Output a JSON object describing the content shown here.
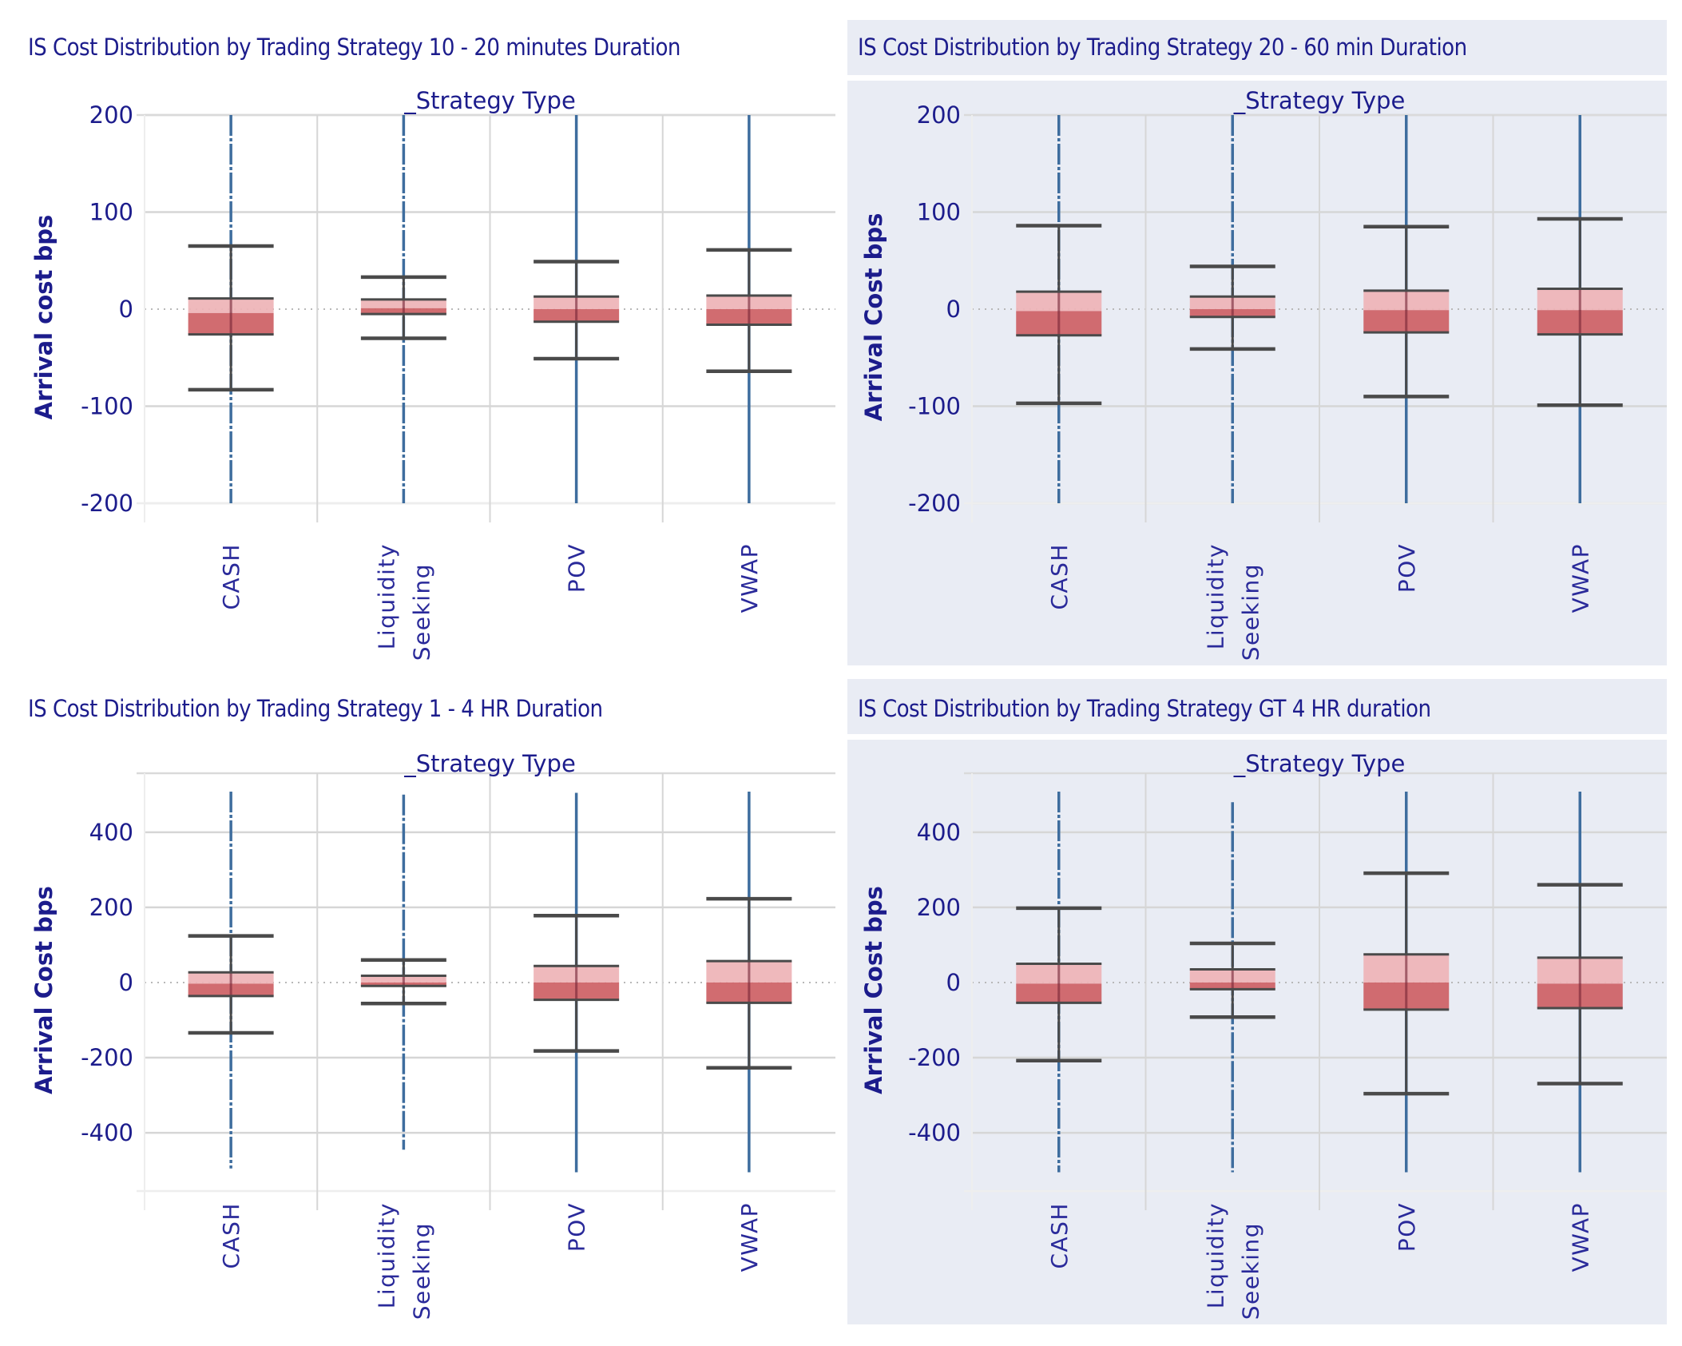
{
  "colors": {
    "text": "#1c1c8c",
    "panel_bg": "#e9ecf4",
    "grid": "#d6d6d6",
    "outlier_line": "#3e6d9e",
    "whisker": "#4a4a4a",
    "box_upper": "#eeb3b6",
    "box_lower": "#cf6468"
  },
  "chart_data": [
    {
      "type": "boxplot",
      "title": "IS Cost Distribution by Trading Strategy  10 - 20 minutes Duration",
      "xlabel": "_Strategy Type",
      "ylabel": "Arrival cost bps",
      "ylim": [
        -200,
        200
      ],
      "yticks": [
        200,
        100,
        0,
        -100,
        -200
      ],
      "grid": true,
      "categories": [
        "CASH",
        "Liquidity Seeking",
        "POV",
        "VWAP"
      ],
      "series": [
        {
          "name": "CASH",
          "whisker_low": -83,
          "q1": -26,
          "median": -4,
          "q3": 11,
          "whisker_high": 65,
          "outlier_range": [
            -200,
            200
          ]
        },
        {
          "name": "Liquidity Seeking",
          "whisker_low": -30,
          "q1": -5,
          "median": 1,
          "q3": 10,
          "whisker_high": 33,
          "outlier_range": [
            -200,
            200
          ]
        },
        {
          "name": "POV",
          "whisker_low": -51,
          "q1": -13,
          "median": 0,
          "q3": 13,
          "whisker_high": 49,
          "outlier_range": [
            -200,
            200
          ]
        },
        {
          "name": "VWAP",
          "whisker_low": -64,
          "q1": -16,
          "median": 0,
          "q3": 14,
          "whisker_high": 61,
          "outlier_range": [
            -200,
            200
          ]
        }
      ]
    },
    {
      "type": "boxplot",
      "title": "IS Cost Distribution by Trading Strategy  20 - 60 min Duration",
      "xlabel": "_Strategy Type",
      "ylabel": "Arrival Cost bps",
      "ylim": [
        -200,
        200
      ],
      "yticks": [
        200,
        100,
        0,
        -100,
        -200
      ],
      "grid": true,
      "categories": [
        "CASH",
        "Liquidity Seeking",
        "POV",
        "VWAP"
      ],
      "series": [
        {
          "name": "CASH",
          "whisker_low": -97,
          "q1": -27,
          "median": -2,
          "q3": 18,
          "whisker_high": 86,
          "outlier_range": [
            -200,
            200
          ]
        },
        {
          "name": "Liquidity Seeking",
          "whisker_low": -41,
          "q1": -8,
          "median": 0,
          "q3": 13,
          "whisker_high": 44,
          "outlier_range": [
            -200,
            200
          ]
        },
        {
          "name": "POV",
          "whisker_low": -90,
          "q1": -24,
          "median": -1,
          "q3": 19,
          "whisker_high": 85,
          "outlier_range": [
            -200,
            200
          ]
        },
        {
          "name": "VWAP",
          "whisker_low": -99,
          "q1": -26,
          "median": -1,
          "q3": 21,
          "whisker_high": 93,
          "outlier_range": [
            -200,
            200
          ]
        }
      ]
    },
    {
      "type": "boxplot",
      "title": "IS Cost Distribution by Trading Strategy 1 - 4 HR  Duration",
      "xlabel": "_Strategy Type",
      "ylabel": "Arrival Cost bps",
      "ylim": [
        -555,
        557
      ],
      "yticks": [
        400,
        200,
        0,
        -200,
        -400
      ],
      "grid": true,
      "categories": [
        "CASH",
        "Liquidity Seeking",
        "POV",
        "VWAP"
      ],
      "series": [
        {
          "name": "CASH",
          "whisker_low": -134,
          "q1": -36,
          "median": -3,
          "q3": 27,
          "whisker_high": 124,
          "outlier_range": [
            -495,
            508
          ]
        },
        {
          "name": "Liquidity Seeking",
          "whisker_low": -56,
          "q1": -9,
          "median": 0,
          "q3": 18,
          "whisker_high": 60,
          "outlier_range": [
            -445,
            500
          ]
        },
        {
          "name": "POV",
          "whisker_low": -182,
          "q1": -46,
          "median": 0,
          "q3": 44,
          "whisker_high": 178,
          "outlier_range": [
            -505,
            505
          ]
        },
        {
          "name": "VWAP",
          "whisker_low": -227,
          "q1": -54,
          "median": 0,
          "q3": 57,
          "whisker_high": 223,
          "outlier_range": [
            -505,
            508
          ]
        }
      ]
    },
    {
      "type": "boxplot",
      "title": "IS Cost Distribution by Trading Strategy GT 4 HR duration",
      "xlabel": "_Strategy Type",
      "ylabel": "Arrival Cost bps",
      "ylim": [
        -555,
        557
      ],
      "yticks": [
        400,
        200,
        0,
        -200,
        -400
      ],
      "grid": true,
      "categories": [
        "CASH",
        "Liquidity Seeking",
        "POV",
        "VWAP"
      ],
      "series": [
        {
          "name": "CASH",
          "whisker_low": -208,
          "q1": -54,
          "median": -3,
          "q3": 50,
          "whisker_high": 198,
          "outlier_range": [
            -505,
            508
          ]
        },
        {
          "name": "Liquidity Seeking",
          "whisker_low": -92,
          "q1": -18,
          "median": 0,
          "q3": 35,
          "whisker_high": 104,
          "outlier_range": [
            -505,
            480
          ]
        },
        {
          "name": "POV",
          "whisker_low": -296,
          "q1": -72,
          "median": 0,
          "q3": 75,
          "whisker_high": 291,
          "outlier_range": [
            -505,
            508
          ]
        },
        {
          "name": "VWAP",
          "whisker_low": -269,
          "q1": -68,
          "median": -3,
          "q3": 66,
          "whisker_high": 260,
          "outlier_range": [
            -505,
            508
          ]
        }
      ]
    }
  ]
}
